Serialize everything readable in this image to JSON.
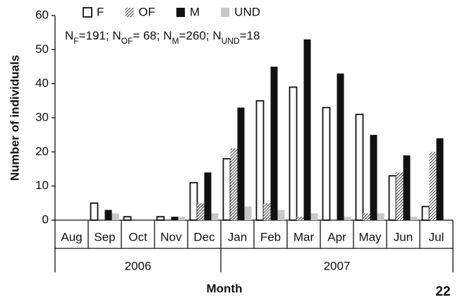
{
  "chart_data": {
    "type": "bar",
    "y_label": "Number of individuals",
    "x_label": "Month",
    "page_number": "22",
    "annotation": [
      "N",
      "F",
      "=191; N",
      "OF",
      "= 68; N",
      "M",
      "=260; N",
      "UND",
      "=18"
    ],
    "category_groups": [
      {
        "label": "2006",
        "categories": [
          "Aug",
          "Sep",
          "Oct",
          "Nov",
          "Dec"
        ]
      },
      {
        "label": "2007",
        "categories": [
          "Jan",
          "Feb",
          "Mar",
          "Apr",
          "May",
          "Jun",
          "Jul"
        ]
      }
    ],
    "series": [
      {
        "name": "F",
        "color": "#ffffff",
        "pattern": "none",
        "values": [
          0,
          5,
          1,
          1,
          11,
          18,
          35,
          39,
          33,
          31,
          13,
          4
        ]
      },
      {
        "name": "OF",
        "color": "#444444",
        "pattern": "hatch",
        "values": [
          0,
          0,
          0,
          0,
          5,
          21,
          5,
          1,
          0,
          2,
          14,
          20
        ]
      },
      {
        "name": "M",
        "color": "#111111",
        "pattern": "none",
        "values": [
          0,
          3,
          0,
          1,
          14,
          33,
          45,
          53,
          43,
          25,
          19,
          24
        ]
      },
      {
        "name": "UND",
        "color": "#c8c8c8",
        "pattern": "none",
        "values": [
          0,
          2,
          0,
          1,
          2,
          4,
          3,
          2,
          1,
          2,
          1,
          0
        ]
      }
    ],
    "ylim": [
      0,
      60
    ],
    "yticks": [
      0,
      10,
      20,
      30,
      40,
      50,
      60
    ],
    "grid": false,
    "legend": "top-left"
  }
}
